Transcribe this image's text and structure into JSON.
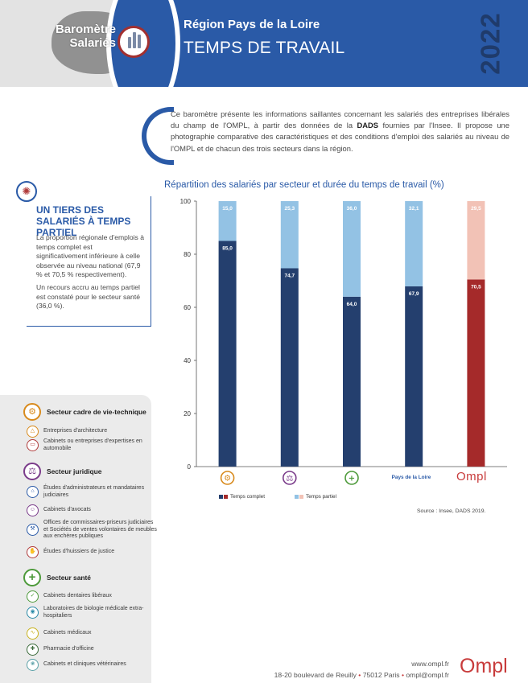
{
  "header": {
    "barometer_line1": "Baromètre",
    "barometer_line2": "Salariés",
    "region": "Région Pays de la Loire",
    "theme": "TEMPS DE TRAVAIL",
    "year": "2022"
  },
  "intro": {
    "text_before": "Ce baromètre présente les informations saillantes concernant les salariés des entreprises libérales du champ de l'OMPL, à partir des données de la ",
    "bold": "DADS",
    "text_after": " fournies par l'Insee. Il propose une photographie comparative des caractéristiques et des conditions d'emploi des salariés au niveau de l'OMPL et de chacun des trois secteurs dans la région."
  },
  "highlight": {
    "icon": "lightbulb-icon",
    "title": "UN TIERS DES SALARIÉS À TEMPS PARTIEL",
    "paragraph1": "La proportion régionale d'emplois à temps complet est significativement inférieure à celle observée au niveau national (67,9 % et 70,5 % respectivement).",
    "paragraph2": "Un recours accru au temps partiel est constaté pour le secteur santé (36,0 %)."
  },
  "sectors": {
    "groups": [
      {
        "title": "Secteur cadre de vie-technique",
        "icon": "cadre-de-vie-icon",
        "items": [
          {
            "label": "Entreprises d'architecture",
            "icon": "compass-icon"
          },
          {
            "label": "Cabinets ou entreprises d'expertises en automobile",
            "icon": "car-icon"
          }
        ]
      },
      {
        "title": "Secteur juridique",
        "icon": "scales-icon",
        "items": [
          {
            "label": "Études d'administrateurs et mandataires judiciaires",
            "icon": "building-icon"
          },
          {
            "label": "Cabinets d'avocats",
            "icon": "lawyer-icon"
          },
          {
            "label": "Offices de commissaires-priseurs judiciaires et Sociétés de ventes volontaires de meubles aux enchères publiques",
            "icon": "gavel-icon"
          },
          {
            "label": "Études d'huissiers de justice",
            "icon": "hand-icon"
          }
        ]
      },
      {
        "title": "Secteur santé",
        "icon": "health-cross-icon",
        "items": [
          {
            "label": "Cabinets dentaires libéraux",
            "icon": "tooth-icon"
          },
          {
            "label": "Laboratoires de biologie médicale extra-hospitaliers",
            "icon": "microscope-icon"
          },
          {
            "label": "Cabinets médicaux",
            "icon": "stethoscope-icon"
          },
          {
            "label": "Pharmacie d'officine",
            "icon": "pharmacy-icon"
          },
          {
            "label": "Cabinets et cliniques vétérinaires",
            "icon": "paw-icon"
          }
        ]
      }
    ]
  },
  "chart_data": {
    "type": "bar",
    "stacked": true,
    "title": "Répartition des salariés par secteur et durée du temps de travail (%)",
    "categories": [
      "cadre-de-vie-technique-icon",
      "juridique-icon",
      "sante-icon",
      "Pays de la Loire",
      "OMPL"
    ],
    "series": [
      {
        "name": "Temps complet",
        "values": [
          85.0,
          74.7,
          64.0,
          67.9,
          70.5
        ],
        "labels": [
          "85,0",
          "74,7",
          "64,0",
          "67,9",
          "70,5"
        ]
      },
      {
        "name": "Temps partiel",
        "values": [
          15.0,
          25.3,
          36.0,
          32.1,
          29.5
        ],
        "labels": [
          "15,0",
          "25,3",
          "36,0",
          "32,1",
          "29,5"
        ]
      }
    ],
    "ylim": [
      0,
      100
    ],
    "yticks": [
      "0",
      "20",
      "40",
      "60",
      "80",
      "100"
    ],
    "grid": false,
    "legend": "bottom",
    "colors": {
      "complet": "#243f6e",
      "partiel": "#93c2e4",
      "complet_ompl": "#a52a2a",
      "partiel_ompl": "#f2c2b6"
    },
    "source": "Source : Insee, DADS 2019."
  },
  "footer": {
    "web": "www.ompl.fr",
    "address": "18-20 boulevard de Reuilly",
    "city": "75012 Paris",
    "email": "ompl@ompl.fr",
    "logo": "Ompl"
  }
}
